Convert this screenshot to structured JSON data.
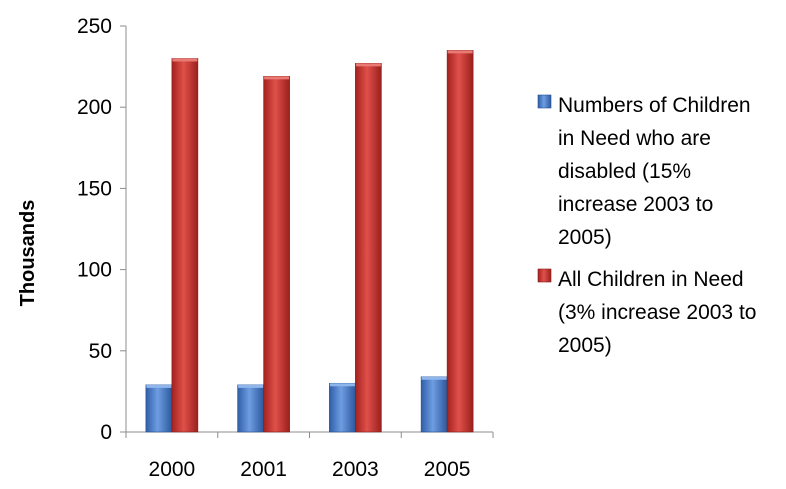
{
  "chart_data": {
    "type": "bar",
    "title": "",
    "xlabel": "",
    "ylabel": "Thousands",
    "categories": [
      "2000",
      "2001",
      "2003",
      "2005"
    ],
    "ylim": [
      0,
      250
    ],
    "yticks": [
      0,
      50,
      100,
      150,
      200,
      250
    ],
    "grid": false,
    "legend_position": "right",
    "style": "3d-shaded bars",
    "series": [
      {
        "name": "Numbers of Children in Need who are disabled (15% increase 2003 to 2005)",
        "legend_lines": [
          "Numbers of Children",
          "in Need who are",
          "disabled (15%",
          "increase 2003 to",
          "2005)"
        ],
        "color": "#3f72c6",
        "values": [
          29,
          29,
          30,
          34
        ]
      },
      {
        "name": "All Children in Need (3% increase 2003 to 2005)",
        "legend_lines": [
          "All Children in Need",
          "(3% increase 2003 to",
          "2005)"
        ],
        "color": "#c0302b",
        "values": [
          230,
          219,
          227,
          235
        ]
      }
    ]
  }
}
